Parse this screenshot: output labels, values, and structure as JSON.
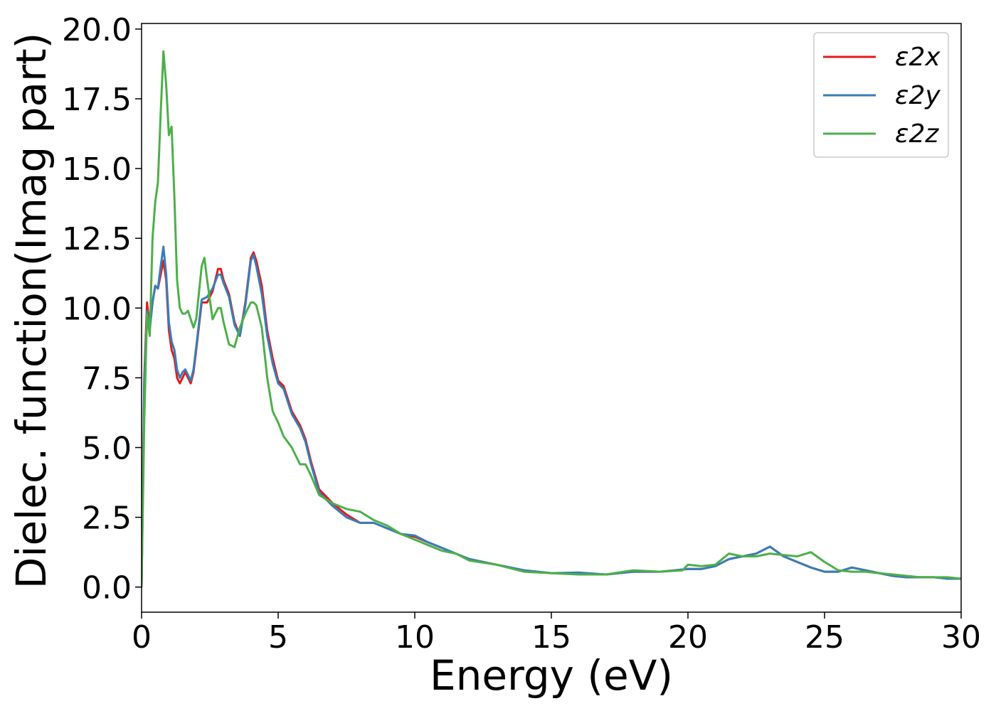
{
  "chart_data": {
    "type": "line",
    "title": "",
    "xlabel": "Energy (eV)",
    "ylabel": "Dielec. function(Imag part)",
    "xlim": [
      0,
      30
    ],
    "ylim": [
      -0.9,
      20.2
    ],
    "xticks": [
      0,
      5,
      10,
      15,
      20,
      25,
      30
    ],
    "xtick_labels": [
      "0",
      "5",
      "10",
      "15",
      "20",
      "25",
      "30"
    ],
    "yticks": [
      0.0,
      2.5,
      5.0,
      7.5,
      10.0,
      12.5,
      15.0,
      17.5,
      20.0
    ],
    "ytick_labels": [
      "0.0",
      "2.5",
      "5.0",
      "7.5",
      "10.0",
      "12.5",
      "15.0",
      "17.5",
      "20.0"
    ],
    "grid": false,
    "legend_position": "top-right",
    "series": [
      {
        "name": "ε2x",
        "color": "#e41a1c",
        "x": [
          0,
          0.1,
          0.2,
          0.3,
          0.4,
          0.5,
          0.6,
          0.7,
          0.8,
          0.9,
          1.0,
          1.1,
          1.2,
          1.3,
          1.4,
          1.5,
          1.6,
          1.7,
          1.8,
          1.9,
          2.0,
          2.2,
          2.4,
          2.6,
          2.8,
          2.9,
          3.0,
          3.2,
          3.4,
          3.6,
          3.8,
          4.0,
          4.1,
          4.2,
          4.4,
          4.6,
          4.8,
          5.0,
          5.2,
          5.5,
          5.8,
          6.0,
          6.2,
          6.5,
          7.0,
          7.5,
          8.0,
          8.5,
          9.0,
          9.5,
          10.0,
          10.5,
          11.0,
          11.5,
          12.0,
          13.0,
          14.0,
          15.0,
          16.0,
          17.0,
          18.0,
          19.0,
          20.0,
          20.5,
          21.0,
          21.5,
          22.0,
          22.5,
          23.0,
          23.5,
          24.0,
          24.5,
          25.0,
          25.5,
          26.0,
          26.5,
          27.0,
          27.5,
          28.0,
          28.5,
          29.0,
          29.5,
          30.0
        ],
        "values": [
          0.0,
          7.5,
          10.2,
          9.3,
          10.2,
          10.8,
          10.7,
          11.2,
          11.7,
          11.0,
          9.2,
          8.5,
          8.2,
          7.5,
          7.3,
          7.5,
          7.7,
          7.5,
          7.3,
          7.7,
          8.5,
          10.2,
          10.2,
          10.6,
          11.4,
          11.4,
          11.0,
          10.5,
          9.5,
          9.0,
          10.2,
          11.8,
          12.0,
          11.7,
          10.8,
          9.2,
          8.2,
          7.4,
          7.2,
          6.3,
          5.8,
          5.3,
          4.5,
          3.5,
          3.0,
          2.6,
          2.3,
          2.3,
          2.1,
          1.9,
          1.8,
          1.6,
          1.4,
          1.2,
          1.0,
          0.8,
          0.6,
          0.5,
          0.5,
          0.45,
          0.55,
          0.55,
          0.65,
          0.65,
          0.75,
          1.0,
          1.1,
          1.2,
          1.45,
          1.1,
          0.9,
          0.7,
          0.55,
          0.55,
          0.7,
          0.6,
          0.5,
          0.4,
          0.35,
          0.35,
          0.35,
          0.3,
          0.3
        ]
      },
      {
        "name": "ε2y",
        "color": "#377eb8",
        "x": [
          0,
          0.1,
          0.2,
          0.3,
          0.4,
          0.5,
          0.6,
          0.7,
          0.8,
          0.9,
          1.0,
          1.1,
          1.2,
          1.3,
          1.4,
          1.5,
          1.6,
          1.7,
          1.8,
          1.9,
          2.0,
          2.2,
          2.4,
          2.6,
          2.8,
          2.9,
          3.0,
          3.2,
          3.4,
          3.6,
          3.8,
          4.0,
          4.1,
          4.2,
          4.4,
          4.6,
          4.8,
          5.0,
          5.2,
          5.5,
          5.8,
          6.0,
          6.2,
          6.5,
          7.0,
          7.5,
          8.0,
          8.5,
          9.0,
          9.5,
          10.0,
          10.5,
          11.0,
          11.5,
          12.0,
          13.0,
          14.0,
          15.0,
          16.0,
          17.0,
          18.0,
          19.0,
          20.0,
          20.5,
          21.0,
          21.5,
          22.0,
          22.5,
          23.0,
          23.5,
          24.0,
          24.5,
          25.0,
          25.5,
          26.0,
          26.5,
          27.0,
          27.5,
          28.0,
          28.5,
          29.0,
          29.5,
          30.0
        ],
        "values": [
          0.0,
          7.2,
          9.9,
          9.2,
          10.2,
          10.8,
          10.7,
          11.5,
          12.2,
          11.2,
          9.5,
          8.8,
          8.5,
          7.8,
          7.5,
          7.7,
          7.8,
          7.6,
          7.4,
          7.8,
          8.6,
          10.3,
          10.4,
          10.7,
          11.2,
          11.2,
          10.9,
          10.4,
          9.4,
          9.0,
          10.1,
          11.7,
          11.9,
          11.5,
          10.5,
          9.0,
          8.0,
          7.3,
          7.1,
          6.2,
          5.7,
          5.2,
          4.4,
          3.4,
          2.9,
          2.5,
          2.3,
          2.3,
          2.1,
          1.9,
          1.85,
          1.6,
          1.4,
          1.2,
          1.0,
          0.8,
          0.6,
          0.5,
          0.52,
          0.45,
          0.55,
          0.55,
          0.65,
          0.65,
          0.75,
          1.0,
          1.1,
          1.2,
          1.45,
          1.1,
          0.9,
          0.7,
          0.55,
          0.55,
          0.7,
          0.6,
          0.5,
          0.4,
          0.35,
          0.35,
          0.35,
          0.3,
          0.3
        ]
      },
      {
        "name": "ε2z",
        "color": "#4daf4a",
        "x": [
          0,
          0.1,
          0.2,
          0.3,
          0.4,
          0.5,
          0.6,
          0.7,
          0.8,
          0.9,
          1.0,
          1.1,
          1.2,
          1.3,
          1.4,
          1.5,
          1.6,
          1.7,
          1.8,
          1.9,
          2.0,
          2.2,
          2.3,
          2.4,
          2.6,
          2.8,
          2.9,
          3.0,
          3.2,
          3.4,
          3.6,
          3.8,
          4.0,
          4.1,
          4.2,
          4.4,
          4.6,
          4.8,
          5.0,
          5.2,
          5.5,
          5.8,
          6.0,
          6.2,
          6.5,
          7.0,
          7.5,
          8.0,
          8.5,
          9.0,
          9.5,
          10.0,
          10.5,
          11.0,
          11.5,
          12.0,
          13.0,
          14.0,
          15.0,
          16.0,
          17.0,
          18.0,
          19.0,
          19.8,
          20.0,
          20.5,
          21.0,
          21.5,
          22.0,
          22.5,
          23.0,
          23.5,
          24.0,
          24.5,
          25.0,
          25.5,
          26.0,
          26.5,
          27.0,
          27.5,
          28.0,
          28.5,
          29.0,
          29.5,
          30.0
        ],
        "values": [
          0.0,
          6.0,
          9.8,
          9.0,
          12.5,
          13.8,
          14.5,
          17.0,
          19.2,
          18.0,
          16.2,
          16.5,
          14.0,
          11.0,
          10.0,
          9.8,
          9.8,
          9.9,
          9.6,
          9.3,
          9.6,
          11.5,
          11.8,
          11.0,
          9.6,
          10.0,
          10.0,
          9.5,
          8.7,
          8.6,
          9.3,
          9.8,
          10.2,
          10.2,
          10.1,
          9.3,
          7.5,
          6.3,
          5.9,
          5.4,
          5.0,
          4.4,
          4.4,
          4.0,
          3.3,
          3.0,
          2.8,
          2.7,
          2.4,
          2.2,
          1.9,
          1.7,
          1.5,
          1.3,
          1.2,
          0.95,
          0.8,
          0.55,
          0.5,
          0.45,
          0.45,
          0.6,
          0.55,
          0.6,
          0.8,
          0.75,
          0.8,
          1.2,
          1.1,
          1.1,
          1.2,
          1.15,
          1.1,
          1.25,
          0.9,
          0.6,
          0.55,
          0.55,
          0.5,
          0.45,
          0.4,
          0.35,
          0.35,
          0.35,
          0.3
        ]
      }
    ]
  }
}
